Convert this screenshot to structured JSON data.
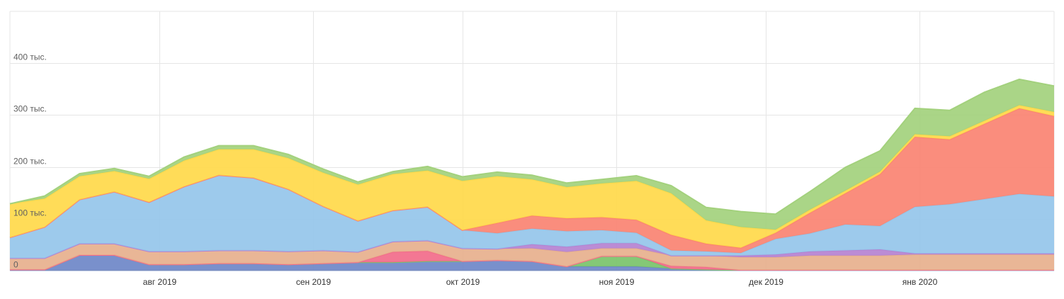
{
  "chart_data": {
    "type": "area",
    "stacked": true,
    "title": "",
    "xlabel": "",
    "ylabel": "",
    "ylim": [
      0,
      500000
    ],
    "grid": true,
    "legend": "none",
    "y_ticks": [
      {
        "value": 0,
        "label": "0"
      },
      {
        "value": 100000,
        "label": "100 тыс."
      },
      {
        "value": 200000,
        "label": "200 тыс."
      },
      {
        "value": 300000,
        "label": "300 тыс."
      },
      {
        "value": 400000,
        "label": "400 тыс."
      }
    ],
    "x_range": [
      "2019-07-02",
      "2020-01-28"
    ],
    "x_ticks": [
      {
        "date": "2019-08-01",
        "label": "авг 2019"
      },
      {
        "date": "2019-09-01",
        "label": "сен 2019"
      },
      {
        "date": "2019-10-01",
        "label": "окт 2019"
      },
      {
        "date": "2019-11-01",
        "label": "ноя 2019"
      },
      {
        "date": "2019-12-01",
        "label": "дек 2019"
      },
      {
        "date": "2020-01-01",
        "label": "янв 2020"
      }
    ],
    "x": [
      "2019-07-02",
      "2019-07-09",
      "2019-07-16",
      "2019-07-23",
      "2019-07-30",
      "2019-08-06",
      "2019-08-13",
      "2019-08-20",
      "2019-08-27",
      "2019-09-03",
      "2019-09-10",
      "2019-09-17",
      "2019-09-24",
      "2019-10-01",
      "2019-10-08",
      "2019-10-15",
      "2019-10-22",
      "2019-10-29",
      "2019-11-05",
      "2019-11-12",
      "2019-11-19",
      "2019-11-26",
      "2019-12-03",
      "2019-12-10",
      "2019-12-17",
      "2019-12-24",
      "2019-12-31",
      "2020-01-07",
      "2020-01-14",
      "2020-01-21",
      "2020-01-28"
    ],
    "series": [
      {
        "color": "#ffd94a",
        "values": [
          0,
          0,
          0,
          0,
          0,
          0,
          0,
          0,
          0,
          0,
          0,
          0,
          0,
          0,
          0,
          0,
          0,
          0,
          0,
          0,
          0,
          0,
          0,
          0,
          0,
          0,
          0,
          0,
          0,
          0,
          0
        ]
      },
      {
        "color": "#6e87c8",
        "values": [
          2000,
          2000,
          30000,
          30000,
          12000,
          12000,
          14000,
          14000,
          12000,
          14000,
          16000,
          16000,
          18000,
          18000,
          20000,
          18000,
          8000,
          8000,
          8000,
          4000,
          2000,
          1000,
          1000,
          1000,
          1000,
          1000,
          1000,
          1000,
          1000,
          1000,
          1000
        ]
      },
      {
        "color": "#79c36a",
        "values": [
          0,
          0,
          0,
          0,
          0,
          0,
          0,
          0,
          0,
          0,
          0,
          0,
          0,
          0,
          0,
          0,
          0,
          20000,
          20000,
          0,
          0,
          0,
          0,
          0,
          0,
          0,
          0,
          0,
          0,
          0,
          0
        ]
      },
      {
        "color": "#f26b8a",
        "values": [
          0,
          0,
          0,
          0,
          0,
          0,
          0,
          0,
          0,
          0,
          0,
          20000,
          20000,
          0,
          0,
          0,
          0,
          0,
          0,
          5000,
          5000,
          0,
          0,
          0,
          0,
          0,
          0,
          0,
          0,
          0,
          0
        ]
      },
      {
        "color": "#e7b08d",
        "values": [
          22000,
          22000,
          22000,
          22000,
          25000,
          25000,
          25000,
          25000,
          25000,
          25000,
          20000,
          20000,
          20000,
          25000,
          22000,
          25000,
          28000,
          15000,
          15000,
          20000,
          22000,
          25000,
          25000,
          28000,
          28000,
          28000,
          30000,
          30000,
          30000,
          30000,
          30000
        ]
      },
      {
        "color": "#b582d1",
        "values": [
          0,
          0,
          0,
          0,
          0,
          0,
          0,
          0,
          0,
          0,
          0,
          0,
          0,
          0,
          0,
          8000,
          10000,
          10000,
          10000,
          0,
          0,
          3000,
          5000,
          8000,
          10000,
          12000,
          2000,
          2000,
          2000,
          2000,
          2000
        ]
      },
      {
        "color": "#95c6ea",
        "values": [
          40000,
          60000,
          85000,
          100000,
          95000,
          125000,
          145000,
          140000,
          120000,
          85000,
          60000,
          60000,
          65000,
          35000,
          30000,
          30000,
          30000,
          25000,
          20000,
          10000,
          8000,
          5000,
          30000,
          35000,
          50000,
          45000,
          90000,
          95000,
          105000,
          115000,
          110000
        ]
      },
      {
        "color": "#fa8372",
        "values": [
          0,
          0,
          0,
          0,
          0,
          0,
          0,
          0,
          0,
          0,
          0,
          0,
          0,
          0,
          20000,
          25000,
          25000,
          25000,
          25000,
          30000,
          15000,
          10000,
          12000,
          40000,
          60000,
          100000,
          135000,
          125000,
          145000,
          165000,
          155000
        ]
      },
      {
        "color": "#ffd94a",
        "values": [
          65000,
          55000,
          45000,
          40000,
          45000,
          50000,
          50000,
          55000,
          60000,
          65000,
          70000,
          70000,
          70000,
          95000,
          90000,
          70000,
          60000,
          65000,
          75000,
          80000,
          45000,
          40000,
          6000,
          6000,
          5000,
          5000,
          5000,
          6000,
          6000,
          6000,
          8000
        ]
      },
      {
        "color": "#a3d17d",
        "values": [
          0,
          5000,
          5000,
          5000,
          5000,
          7000,
          7000,
          7000,
          7000,
          7000,
          5000,
          5000,
          8000,
          8000,
          8000,
          8000,
          8000,
          8000,
          10000,
          15000,
          25000,
          30000,
          30000,
          35000,
          45000,
          40000,
          50000,
          50000,
          55000,
          50000,
          50000
        ]
      }
    ]
  }
}
